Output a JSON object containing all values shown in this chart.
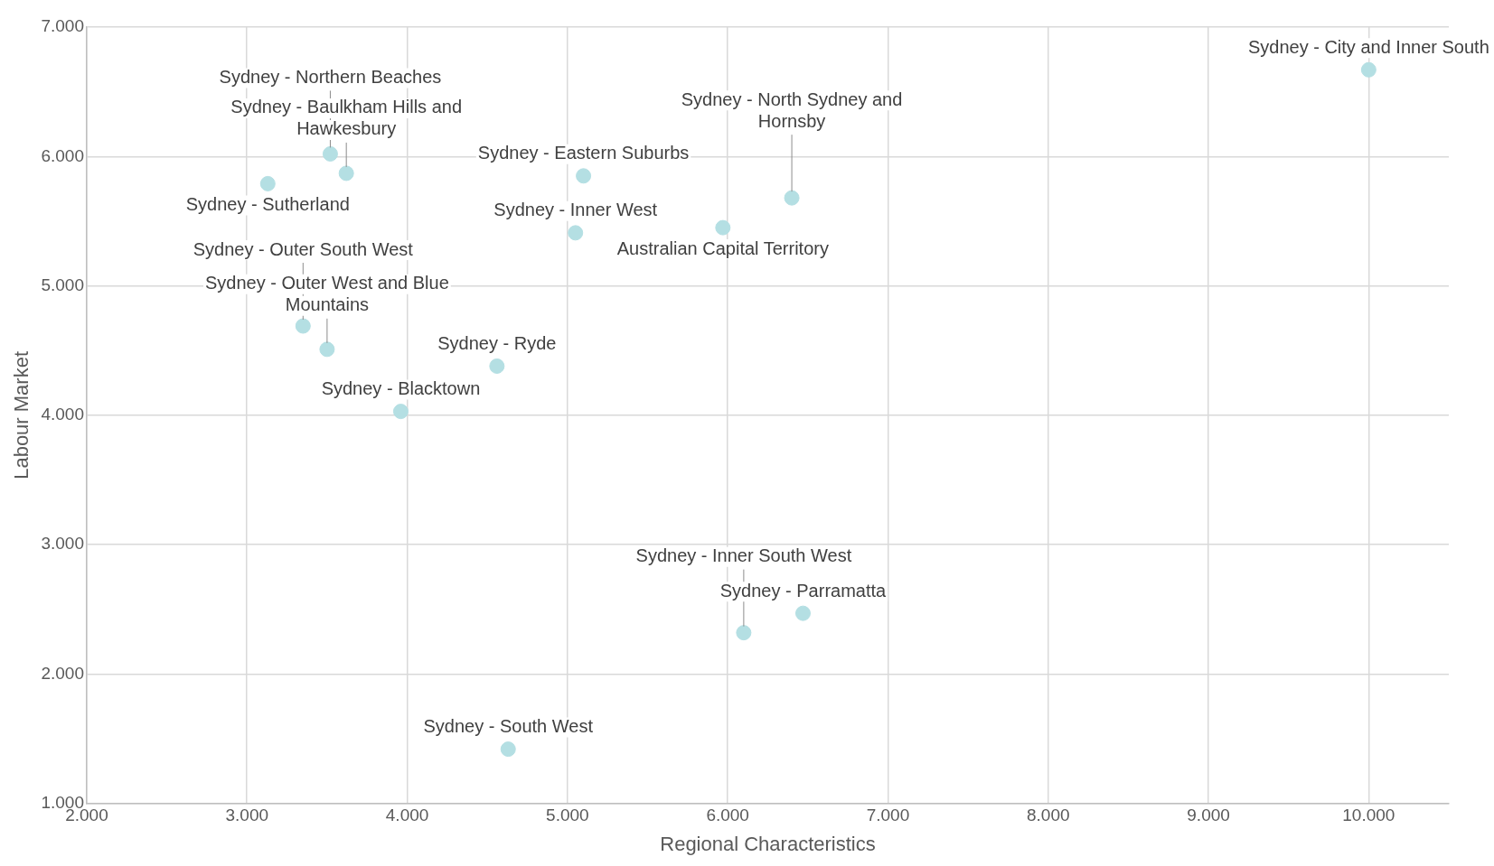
{
  "chart_data": {
    "type": "scatter",
    "xlabel": "Regional Characteristics",
    "ylabel": "Labour Market",
    "x": [
      10.0,
      3.62,
      3.52,
      3.13,
      5.1,
      6.4,
      5.05,
      5.97,
      3.5,
      3.35,
      4.56,
      3.96,
      6.47,
      6.1,
      4.63
    ],
    "values": [
      6.67,
      5.87,
      6.02,
      5.79,
      5.85,
      5.68,
      5.41,
      5.45,
      4.51,
      4.69,
      4.38,
      4.03,
      2.47,
      2.32,
      1.42
    ],
    "color": "#b4dfe3",
    "marker": "circle",
    "grid": true,
    "legend": false,
    "xlim": [
      2,
      10.5
    ],
    "xticks": [
      {
        "value": 2,
        "label": "2.000"
      },
      {
        "value": 3,
        "label": "3.000"
      },
      {
        "value": 4,
        "label": "4.000"
      },
      {
        "value": 5,
        "label": "5.000"
      },
      {
        "value": 6,
        "label": "6.000"
      },
      {
        "value": 7,
        "label": "7.000"
      },
      {
        "value": 8,
        "label": "8.000"
      },
      {
        "value": 9,
        "label": "9.000"
      },
      {
        "value": 10,
        "label": "10.000"
      }
    ],
    "ylim": [
      1,
      7
    ],
    "yticks": [
      {
        "value": 1,
        "label": "1.000"
      },
      {
        "value": 2,
        "label": "2.000"
      },
      {
        "value": 3,
        "label": "3.000"
      },
      {
        "value": 4,
        "label": "4.000"
      },
      {
        "value": 5,
        "label": "5.000"
      },
      {
        "value": 6,
        "label": "6.000"
      },
      {
        "value": 7,
        "label": "7.000"
      }
    ],
    "annotations": [
      {
        "text": "Sydney - City and Inner South",
        "x": 10.0,
        "y": 6.67
      },
      {
        "text": "Sydney - Baulkham Hills and Hawkesbury",
        "x": 3.62,
        "y": 5.87
      },
      {
        "text": "Sydney - Northern Beaches",
        "x": 3.52,
        "y": 6.02
      },
      {
        "text": "Sydney - Sutherland",
        "x": 3.13,
        "y": 5.79
      },
      {
        "text": "Sydney - Eastern Suburbs",
        "x": 5.1,
        "y": 5.85
      },
      {
        "text": "Sydney - North Sydney and Hornsby",
        "x": 6.4,
        "y": 5.68
      },
      {
        "text": "Sydney - Inner West",
        "x": 5.05,
        "y": 5.41
      },
      {
        "text": "Australian Capital Territory",
        "x": 5.97,
        "y": 5.45
      },
      {
        "text": "Sydney - Outer West and Blue Mountains",
        "x": 3.5,
        "y": 4.51
      },
      {
        "text": "Sydney - Outer South West",
        "x": 3.35,
        "y": 4.69
      },
      {
        "text": "Sydney - Ryde",
        "x": 4.56,
        "y": 4.38
      },
      {
        "text": "Sydney - Blacktown",
        "x": 3.96,
        "y": 4.03
      },
      {
        "text": "Sydney - Parramatta",
        "x": 6.47,
        "y": 2.47
      },
      {
        "text": "Sydney - Inner South West",
        "x": 6.1,
        "y": 2.32
      },
      {
        "text": "Sydney - South West",
        "x": 4.63,
        "y": 1.42
      }
    ]
  }
}
